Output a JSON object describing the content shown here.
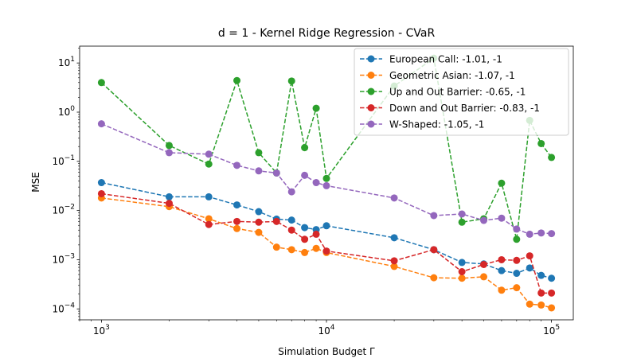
{
  "chart_data": {
    "type": "line",
    "title": "d = 1 - Kernel Ridge Regression - CVaR",
    "xlabel": "Simulation Budget Γ",
    "ylabel": "MSE",
    "xscale": "log",
    "yscale": "log",
    "xlim": [
      800,
      125000
    ],
    "ylim": [
      6e-05,
      22
    ],
    "x_ticks": [
      {
        "value": 1000,
        "base": "10",
        "exp": "3"
      },
      {
        "value": 10000,
        "base": "10",
        "exp": "4"
      },
      {
        "value": 100000,
        "base": "10",
        "exp": "5"
      }
    ],
    "y_ticks": [
      {
        "value": 0.0001,
        "base": "10",
        "exp": "−4"
      },
      {
        "value": 0.001,
        "base": "10",
        "exp": "−3"
      },
      {
        "value": 0.01,
        "base": "10",
        "exp": "−2"
      },
      {
        "value": 0.1,
        "base": "10",
        "exp": "−1"
      },
      {
        "value": 1,
        "base": "10",
        "exp": "0"
      },
      {
        "value": 10,
        "base": "10",
        "exp": "1"
      }
    ],
    "grid": false,
    "legend_position": "top-right",
    "x": [
      1000,
      2000,
      3000,
      4000,
      5000,
      6000,
      7000,
      8000,
      9000,
      10000,
      20000,
      30000,
      40000,
      50000,
      60000,
      70000,
      80000,
      90000,
      100000
    ],
    "series": [
      {
        "name": "European Call: -1.01, -1",
        "color": "#1f77b4",
        "values": [
          0.037,
          0.019,
          0.019,
          0.013,
          0.0095,
          0.0067,
          0.0064,
          0.0045,
          0.0041,
          0.0049,
          0.0028,
          0.0016,
          0.00088,
          0.00082,
          0.0006,
          0.00053,
          0.00068,
          0.00048,
          0.00042
        ]
      },
      {
        "name": "Geometric Asian: -1.07, -1",
        "color": "#ff7f0e",
        "values": [
          0.018,
          0.012,
          0.0068,
          0.0043,
          0.0036,
          0.0018,
          0.0016,
          0.0014,
          0.0017,
          0.0014,
          0.00073,
          0.00043,
          0.00042,
          0.00045,
          0.00024,
          0.00027,
          0.000125,
          0.00012,
          0.000105
        ]
      },
      {
        "name": "Up and Out Barrier: -0.65, -1",
        "color": "#2ca02c",
        "values": [
          4.0,
          0.21,
          0.088,
          4.4,
          0.15,
          0.058,
          4.3,
          0.19,
          1.2,
          0.045,
          3.4,
          12.5,
          0.0058,
          0.0068,
          0.036,
          0.0026,
          0.68,
          0.23,
          0.12
        ]
      },
      {
        "name": "Down and Out Barrier: -0.83, -1",
        "color": "#d62728",
        "values": [
          0.022,
          0.014,
          0.0052,
          0.006,
          0.0058,
          0.006,
          0.004,
          0.0026,
          0.0033,
          0.0015,
          0.00095,
          0.0016,
          0.00057,
          0.0008,
          0.001,
          0.00097,
          0.0012,
          0.00021,
          0.00021
        ]
      },
      {
        "name": "W-Shaped: -1.05, -1",
        "color": "#9467bd",
        "values": [
          0.58,
          0.15,
          0.14,
          0.083,
          0.064,
          0.058,
          0.024,
          0.052,
          0.037,
          0.032,
          0.018,
          0.0079,
          0.0085,
          0.0063,
          0.007,
          0.0042,
          0.0033,
          0.0035,
          0.0034
        ]
      }
    ]
  }
}
